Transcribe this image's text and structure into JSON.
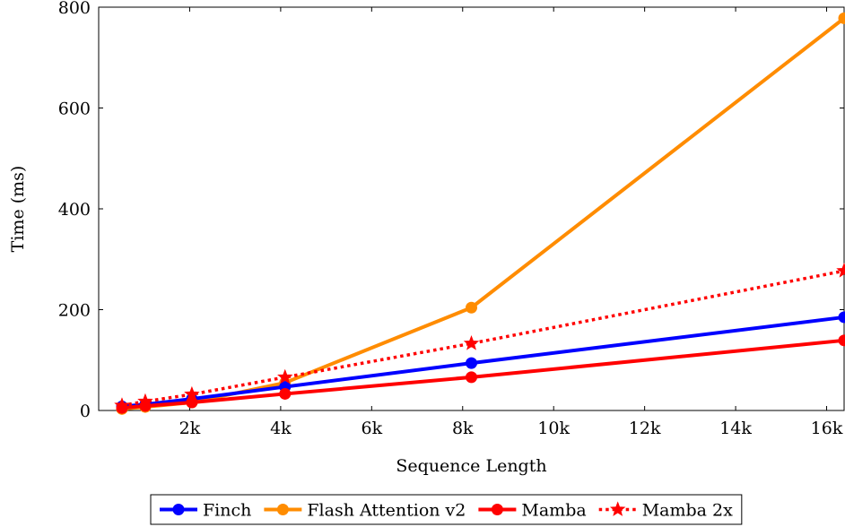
{
  "chart_data": {
    "type": "line",
    "title": "",
    "xlabel": "Sequence Length",
    "ylabel": "Time (ms)",
    "xlim": [
      0,
      16384
    ],
    "ylim": [
      0,
      800
    ],
    "x_ticks": [
      2000,
      4000,
      6000,
      8000,
      10000,
      12000,
      14000,
      16000
    ],
    "x_tick_labels": [
      "2k",
      "4k",
      "6k",
      "8k",
      "10k",
      "12k",
      "14k",
      "16k"
    ],
    "y_ticks": [
      0,
      200,
      400,
      600,
      800
    ],
    "y_tick_labels": [
      "0",
      "200",
      "400",
      "600",
      "800"
    ],
    "grid": false,
    "legend_position": "bottom",
    "x": [
      512,
      1024,
      2048,
      4096,
      8192,
      16384
    ],
    "series": [
      {
        "name": "Finch",
        "color": "#0000ff",
        "style": "solid",
        "marker": "circle",
        "values": [
          8,
          12,
          23,
          47,
          94,
          185
        ]
      },
      {
        "name": "Flash Attention v2",
        "color": "#ff8c00",
        "style": "solid",
        "marker": "circle",
        "values": [
          3,
          7,
          16,
          55,
          204,
          778
        ]
      },
      {
        "name": "Mamba",
        "color": "#ff0000",
        "style": "solid",
        "marker": "circle",
        "values": [
          5,
          9,
          16,
          33,
          66,
          139
        ]
      },
      {
        "name": "Mamba 2x",
        "color": "#ff0000",
        "style": "dotted",
        "marker": "star",
        "values": [
          10,
          18,
          32,
          66,
          133,
          277
        ]
      }
    ]
  }
}
